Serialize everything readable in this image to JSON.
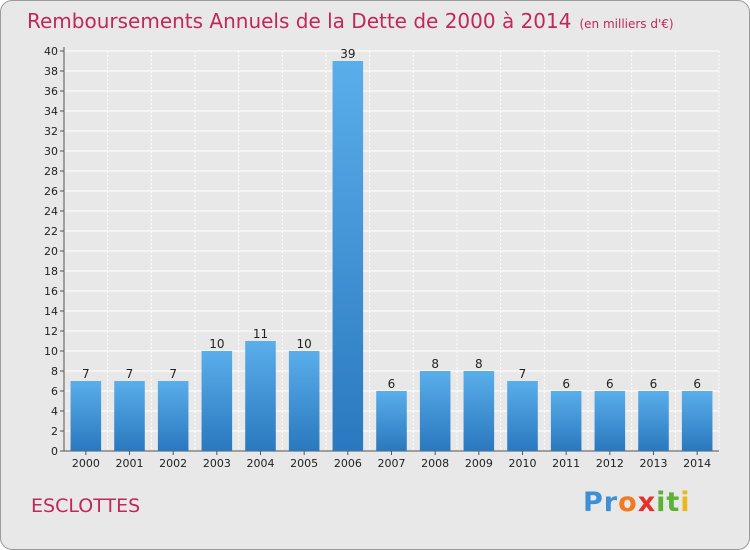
{
  "title": "Remboursements Annuels de la Dette de 2000 à 2014",
  "title_unit": "(en milliers d'€)",
  "commune": "ESCLOTTES",
  "logo": {
    "text": "Proxiti",
    "letters": [
      {
        "char": "P",
        "color": "#3d8fd6"
      },
      {
        "char": "r",
        "color": "#3d8fd6"
      },
      {
        "char": "o",
        "color": "#f07b1f"
      },
      {
        "char": "x",
        "color": "#e3322b"
      },
      {
        "char": "i",
        "color": "#5bb332"
      },
      {
        "char": "t",
        "color": "#5bb332"
      },
      {
        "char": "i",
        "color": "#e9b91b"
      }
    ]
  },
  "colors": {
    "title": "#c0285a",
    "bar_top": "#5aaeea",
    "bar_bottom": "#2a78bf",
    "grid": "#ffffff",
    "background": "#e8e8e8"
  },
  "chart_data": {
    "type": "bar",
    "categories": [
      "2000",
      "2001",
      "2002",
      "2003",
      "2004",
      "2005",
      "2006",
      "2007",
      "2008",
      "2009",
      "2010",
      "2011",
      "2012",
      "2013",
      "2014"
    ],
    "values": [
      7,
      7,
      7,
      10,
      11,
      10,
      39,
      6,
      8,
      8,
      7,
      6,
      6,
      6,
      6
    ],
    "ylim": [
      0,
      40
    ],
    "ytick_step": 2,
    "grid": true,
    "xlabel": "",
    "ylabel": ""
  }
}
